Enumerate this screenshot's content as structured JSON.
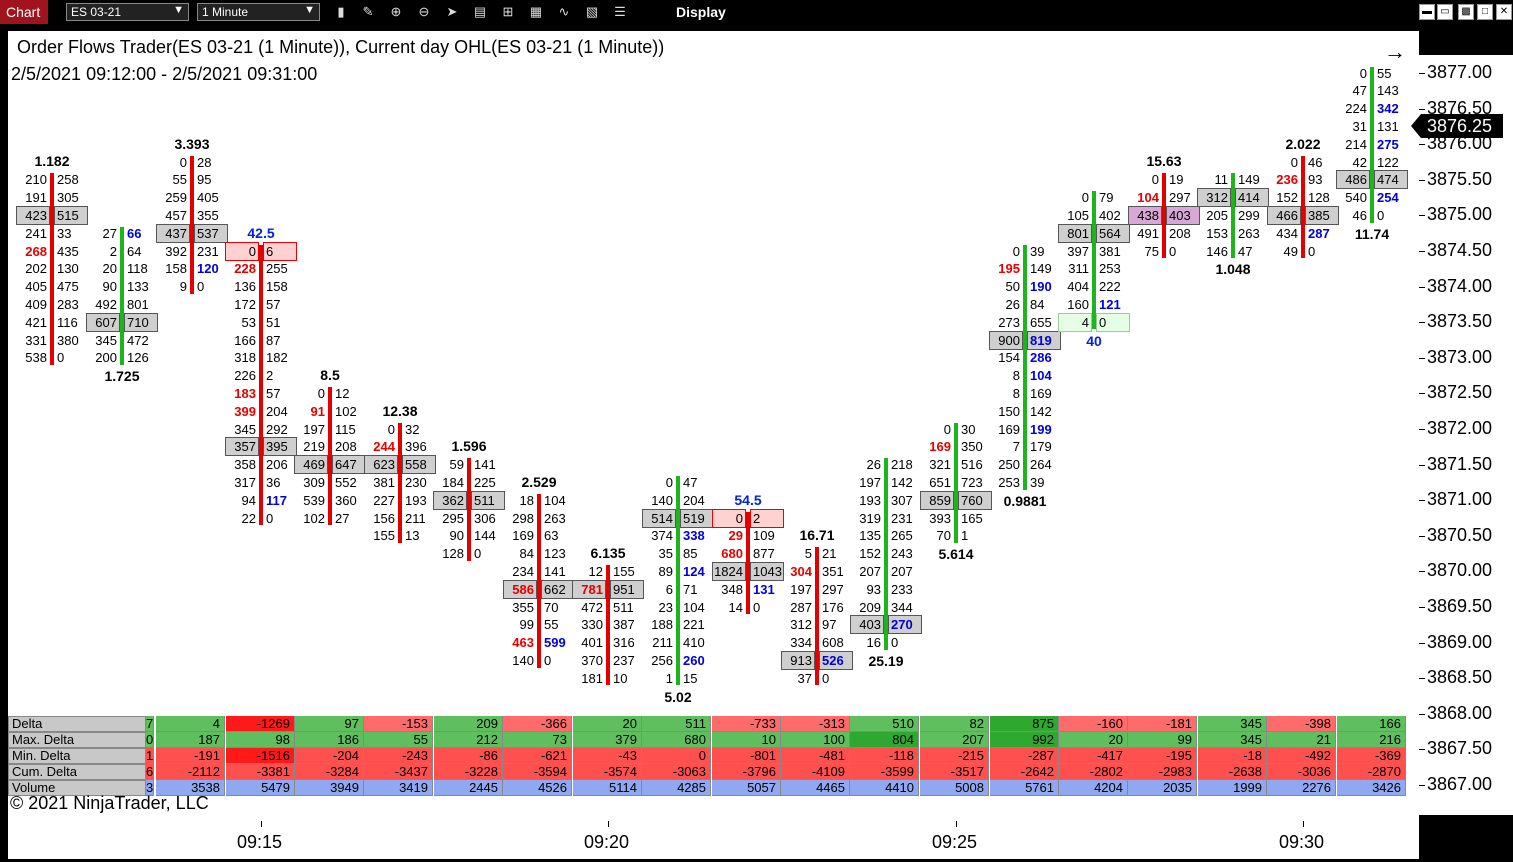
{
  "toolbar": {
    "tab_label": "Chart",
    "instrument": "ES 03-21",
    "interval": "1 Minute",
    "display_label": "Display",
    "icons": [
      "bar-type-icon",
      "draw-pencil-icon",
      "zoom-in-icon",
      "zoom-out-icon",
      "pointer-icon",
      "data-box-icon",
      "indicators-icon",
      "strategies-icon",
      "chart-trader-icon",
      "properties-icon",
      "list-icon"
    ]
  },
  "chart": {
    "title": "Order Flows Trader(ES 03-21 (1 Minute)), Current day OHL(ES 03-21 (1 Minute))",
    "range": "2/5/2021 09:12:00 - 2/5/2021 09:31:00",
    "copyright": "© 2021 NinjaTrader, LLC",
    "last_price": "3876.25",
    "price_ticks": [
      "3877.00",
      "3876.50",
      "3876.00",
      "3875.50",
      "3875.00",
      "3874.50",
      "3874.00",
      "3873.50",
      "3873.00",
      "3872.50",
      "3872.00",
      "3871.50",
      "3871.00",
      "3870.50",
      "3870.00",
      "3869.50",
      "3869.00",
      "3868.50",
      "3868.00",
      "3867.50",
      "3867.00"
    ],
    "time_ticks": [
      "09:15",
      "09:20",
      "09:25",
      "09:30"
    ]
  },
  "chart_data": {
    "type": "table",
    "price_levels_top": 3877.0,
    "tick_size": 0.25,
    "bars": [
      {
        "time": "09:12",
        "direction": "down",
        "top": 3875.5,
        "stat_top": "1.182",
        "stat_top_color": "black",
        "rows": [
          [
            "210",
            "258"
          ],
          [
            "191",
            "305"
          ],
          [
            "423",
            "515",
            "box"
          ],
          [
            "241",
            "33"
          ],
          [
            "268r",
            "435"
          ],
          [
            "202",
            "130"
          ],
          [
            "405",
            "475"
          ],
          [
            "409",
            "283"
          ],
          [
            "421",
            "116"
          ],
          [
            "331",
            "380"
          ],
          [
            "538",
            "0"
          ]
        ]
      },
      {
        "time": "09:13",
        "direction": "up",
        "top": 3874.75,
        "stat_bottom": "1.725",
        "rows": [
          [
            "27",
            "66b"
          ],
          [
            "2",
            "64"
          ],
          [
            "20",
            "118"
          ],
          [
            "90",
            "133"
          ],
          [
            "492",
            "801"
          ],
          [
            "607",
            "710",
            "box"
          ],
          [
            "345",
            "472"
          ],
          [
            "200",
            "126"
          ]
        ]
      },
      {
        "time": "09:14",
        "direction": "down",
        "top": 3875.75,
        "stat_top": "3.393",
        "rows": [
          [
            "0",
            "28"
          ],
          [
            "55",
            "95"
          ],
          [
            "259",
            "405"
          ],
          [
            "457",
            "355"
          ],
          [
            "437",
            "537",
            "box"
          ],
          [
            "392",
            "231"
          ],
          [
            "158",
            "120b"
          ],
          [
            "9",
            "0"
          ]
        ]
      },
      {
        "time": "09:15",
        "direction": "down",
        "top": 3874.5,
        "stat_top": "42.5",
        "stat_top_color": "blue",
        "rows": [
          [
            "0",
            "6",
            "boxred"
          ],
          [
            "228r",
            "255"
          ],
          [
            "136",
            "158"
          ],
          [
            "172",
            "57"
          ],
          [
            "53",
            "51"
          ],
          [
            "166",
            "87"
          ],
          [
            "318",
            "182"
          ],
          [
            "226",
            "2"
          ],
          [
            "183r",
            "57"
          ],
          [
            "399r",
            "204"
          ],
          [
            "345",
            "292"
          ],
          [
            "357",
            "395",
            "box"
          ],
          [
            "358",
            "206"
          ],
          [
            "317",
            "36"
          ],
          [
            "94",
            "117b"
          ],
          [
            "22",
            "0"
          ]
        ]
      },
      {
        "time": "09:16",
        "direction": "down",
        "top": 3872.5,
        "stat_top": "8.5",
        "rows": [
          [
            "0",
            "12"
          ],
          [
            "91r",
            "102"
          ],
          [
            "197",
            "115"
          ],
          [
            "219",
            "208"
          ],
          [
            "469",
            "647",
            "box"
          ],
          [
            "309",
            "552"
          ],
          [
            "539",
            "360"
          ],
          [
            "102",
            "27"
          ]
        ]
      },
      {
        "time": "09:17",
        "direction": "down",
        "top": 3872.0,
        "stat_top": "12.38",
        "rows": [
          [
            "0",
            "32"
          ],
          [
            "244r",
            "396"
          ],
          [
            "623",
            "558",
            "box"
          ],
          [
            "381",
            "230"
          ],
          [
            "227",
            "193"
          ],
          [
            "156",
            "211"
          ],
          [
            "155",
            "13"
          ]
        ]
      },
      {
        "time": "09:18",
        "direction": "down",
        "top": 3871.5,
        "stat_top": "1.596",
        "rows": [
          [
            "59",
            "141"
          ],
          [
            "184",
            "225"
          ],
          [
            "362",
            "511",
            "box"
          ],
          [
            "295",
            "306"
          ],
          [
            "90",
            "144"
          ],
          [
            "128",
            "0"
          ]
        ]
      },
      {
        "time": "09:19",
        "direction": "down",
        "top": 3871.0,
        "stat_top": "2.529",
        "rows": [
          [
            "18",
            "104"
          ],
          [
            "298",
            "263"
          ],
          [
            "169",
            "63"
          ],
          [
            "84",
            "123"
          ],
          [
            "234",
            "141"
          ],
          [
            "586r",
            "662",
            "box"
          ],
          [
            "355",
            "70"
          ],
          [
            "99",
            "55"
          ],
          [
            "463r",
            "599b"
          ],
          [
            "140",
            "0"
          ]
        ]
      },
      {
        "time": "09:20",
        "direction": "down",
        "top": 3870.0,
        "stat_top": "6.135",
        "rows": [
          [
            "12",
            "155"
          ],
          [
            "781r",
            "951",
            "box"
          ],
          [
            "472",
            "511"
          ],
          [
            "330",
            "387"
          ],
          [
            "401",
            "316"
          ],
          [
            "370",
            "237"
          ],
          [
            "181",
            "10"
          ]
        ]
      },
      {
        "time": "09:21",
        "direction": "up",
        "top": 3871.25,
        "stat_bottom": "5.02",
        "rows": [
          [
            "0",
            "47"
          ],
          [
            "140",
            "204"
          ],
          [
            "514",
            "519",
            "box"
          ],
          [
            "374",
            "338b"
          ],
          [
            "35",
            "85"
          ],
          [
            "89",
            "124b"
          ],
          [
            "6",
            "71"
          ],
          [
            "23",
            "104"
          ],
          [
            "188",
            "221"
          ],
          [
            "211",
            "410"
          ],
          [
            "256",
            "260b"
          ],
          [
            "1",
            "15"
          ]
        ]
      },
      {
        "time": "09:22",
        "direction": "down",
        "top": 3870.75,
        "stat_top": "54.5",
        "stat_top_color": "blue",
        "rows": [
          [
            "0",
            "2",
            "boxred"
          ],
          [
            "29r",
            "109"
          ],
          [
            "680r",
            "877"
          ],
          [
            "1824",
            "1043",
            "box"
          ],
          [
            "348",
            "131b"
          ],
          [
            "14",
            "0"
          ]
        ]
      },
      {
        "time": "09:23",
        "direction": "down",
        "top": 3870.25,
        "stat_top": "16.71",
        "rows": [
          [
            "5",
            "21"
          ],
          [
            "304r",
            "351"
          ],
          [
            "197",
            "297"
          ],
          [
            "287",
            "176"
          ],
          [
            "312",
            "97"
          ],
          [
            "334",
            "608"
          ],
          [
            "913",
            "526b",
            "box"
          ],
          [
            "37",
            "0"
          ]
        ]
      },
      {
        "time": "09:24",
        "direction": "up",
        "top": 3871.5,
        "stat_bottom": "25.19",
        "rows": [
          [
            "26",
            "218"
          ],
          [
            "197",
            "142"
          ],
          [
            "193",
            "307"
          ],
          [
            "319",
            "231"
          ],
          [
            "135",
            "265"
          ],
          [
            "152",
            "243"
          ],
          [
            "207",
            "207"
          ],
          [
            "93",
            "233"
          ],
          [
            "209",
            "344"
          ],
          [
            "403",
            "270b",
            "box"
          ],
          [
            "16",
            "0"
          ]
        ]
      },
      {
        "time": "09:25",
        "direction": "up",
        "top": 3872.0,
        "stat_bottom": "5.614",
        "rows": [
          [
            "0",
            "30"
          ],
          [
            "169r",
            "350"
          ],
          [
            "321",
            "516"
          ],
          [
            "651",
            "723"
          ],
          [
            "859",
            "760",
            "box"
          ],
          [
            "393",
            "165"
          ],
          [
            "70",
            "1"
          ]
        ]
      },
      {
        "time": "09:26",
        "direction": "up",
        "top": 3874.5,
        "stat_bottom": "0.9881",
        "rows": [
          [
            "0",
            "39"
          ],
          [
            "195r",
            "149"
          ],
          [
            "50",
            "190b"
          ],
          [
            "26",
            "84"
          ],
          [
            "273",
            "655"
          ],
          [
            "900",
            "819b",
            "box"
          ],
          [
            "154",
            "286b"
          ],
          [
            "8",
            "104b"
          ],
          [
            "8",
            "169"
          ],
          [
            "150",
            "142"
          ],
          [
            "169",
            "199b"
          ],
          [
            "7",
            "179"
          ],
          [
            "250",
            "264"
          ],
          [
            "253",
            "39"
          ]
        ]
      },
      {
        "time": "09:27",
        "direction": "up",
        "top": 3875.25,
        "stat_bottom": "40",
        "stat_bottom_color": "blue",
        "rows": [
          [
            "0",
            "79"
          ],
          [
            "105",
            "402"
          ],
          [
            "801",
            "564",
            "box"
          ],
          [
            "397",
            "381"
          ],
          [
            "311",
            "253"
          ],
          [
            "404",
            "222"
          ],
          [
            "160",
            "121b"
          ],
          [
            "4",
            "0",
            "boxgreen"
          ]
        ]
      },
      {
        "time": "09:28",
        "direction": "down",
        "top": 3875.5,
        "stat_top": "15.63",
        "rows": [
          [
            "0",
            "19"
          ],
          [
            "104r",
            "297"
          ],
          [
            "438",
            "403",
            "boxpink"
          ],
          [
            "491",
            "208"
          ],
          [
            "75",
            "0"
          ]
        ]
      },
      {
        "time": "09:29",
        "direction": "up",
        "top": 3875.5,
        "stat_bottom": "1.048",
        "rows": [
          [
            "11",
            "149"
          ],
          [
            "312",
            "414",
            "box"
          ],
          [
            "205",
            "299"
          ],
          [
            "153",
            "263"
          ],
          [
            "146",
            "47"
          ]
        ]
      },
      {
        "time": "09:30",
        "direction": "down",
        "top": 3875.75,
        "stat_top": "2.022",
        "rows": [
          [
            "0",
            "46"
          ],
          [
            "236r",
            "93"
          ],
          [
            "152",
            "128"
          ],
          [
            "466",
            "385",
            "box"
          ],
          [
            "434",
            "287b"
          ],
          [
            "49",
            "0"
          ]
        ]
      },
      {
        "time": "09:31",
        "direction": "up",
        "top": 3877.0,
        "stat_bottom": "11.74",
        "rows": [
          [
            "0",
            "55"
          ],
          [
            "47",
            "143"
          ],
          [
            "224",
            "342b"
          ],
          [
            "31",
            "131"
          ],
          [
            "214",
            "275b"
          ],
          [
            "42",
            "122"
          ],
          [
            "486",
            "474",
            "box"
          ],
          [
            "540",
            "254b"
          ],
          [
            "46",
            "0"
          ]
        ]
      }
    ],
    "delta_table": {
      "row_labels": [
        "Delta",
        "Max. Delta",
        "Min. Delta",
        "Cum. Delta",
        "Volume"
      ],
      "first_col_partial": [
        "7",
        "0",
        "1",
        "6",
        "3"
      ],
      "columns": [
        [
          "4",
          "187",
          "-191",
          "-2112",
          "3538"
        ],
        [
          "-1269",
          "98",
          "-1516",
          "-3381",
          "5479"
        ],
        [
          "97",
          "186",
          "-204",
          "-3284",
          "3949"
        ],
        [
          "-153",
          "55",
          "-243",
          "-3437",
          "3419"
        ],
        [
          "209",
          "212",
          "-86",
          "-3228",
          "2445"
        ],
        [
          "-366",
          "73",
          "-621",
          "-3594",
          "4526"
        ],
        [
          "20",
          "379",
          "-43",
          "-3574",
          "5114"
        ],
        [
          "511",
          "680",
          "0",
          "-3063",
          "4285"
        ],
        [
          "-733",
          "10",
          "-801",
          "-3796",
          "5057"
        ],
        [
          "-313",
          "100",
          "-481",
          "-4109",
          "4465"
        ],
        [
          "510",
          "804",
          "-118",
          "-3599",
          "4410"
        ],
        [
          "82",
          "207",
          "-215",
          "-3517",
          "5008"
        ],
        [
          "875",
          "992",
          "-287",
          "-2642",
          "5761"
        ],
        [
          "-160",
          "20",
          "-417",
          "-2802",
          "4204"
        ],
        [
          "-181",
          "99",
          "-195",
          "-2983",
          "2035"
        ],
        [
          "345",
          "345",
          "-18",
          "-2638",
          "1999"
        ],
        [
          "-398",
          "21",
          "-492",
          "-3036",
          "2276"
        ],
        [
          "166",
          "216",
          "-369",
          "-2870",
          "3426"
        ]
      ],
      "colors": {
        "pos_delta": "#5fbf5f",
        "neg_delta": "#ff6b6b",
        "strong_neg": "#ff1a1a",
        "strong_pos": "#2ea82e",
        "max_delta": "#5fbf5f",
        "min_delta": "#ff5050",
        "cum_delta": "#ff5050",
        "volume": "#8fa8ef"
      }
    }
  }
}
